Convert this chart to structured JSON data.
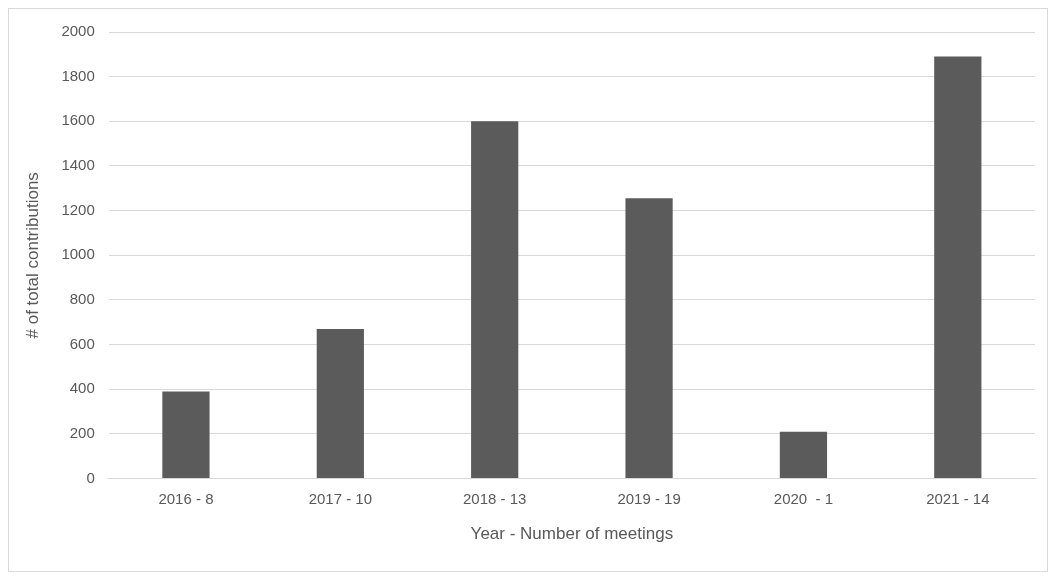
{
  "chart_data": {
    "type": "bar",
    "xlabel": "Year - Number of meetings",
    "ylabel": "# of total contributions",
    "categories": [
      "2016 - 8",
      "2017 - 10",
      "2018 - 13",
      "2019 - 19",
      "2020  - 1",
      "2021 - 14"
    ],
    "values": [
      390,
      670,
      1600,
      1255,
      210,
      1890
    ],
    "color": "#5b5b5b",
    "ylim": [
      0,
      2000
    ],
    "yticks": [
      0,
      200,
      400,
      600,
      800,
      1000,
      1200,
      1400,
      1600,
      1800,
      2000
    ],
    "grid": "y",
    "legend": false
  }
}
